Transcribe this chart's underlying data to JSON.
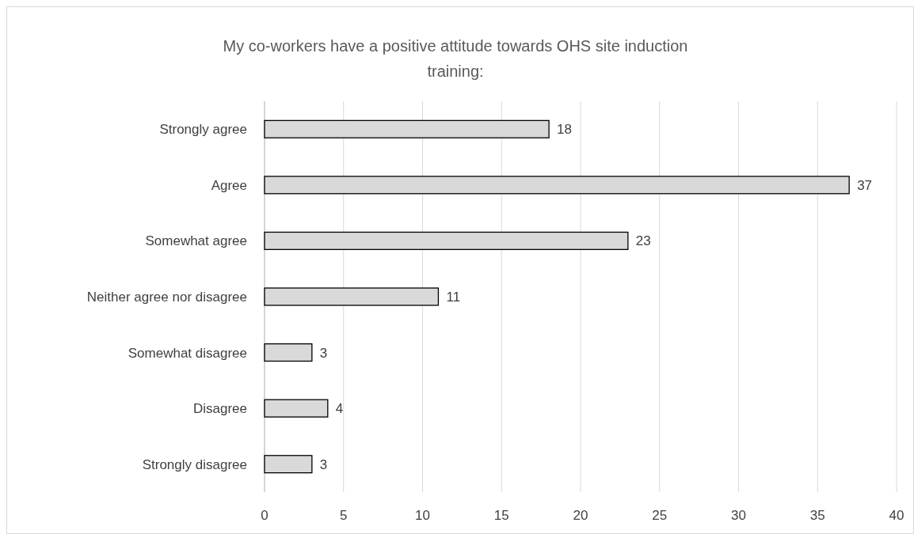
{
  "chart_data": {
    "type": "bar",
    "orientation": "horizontal",
    "title": "My co-workers have a positive attitude towards OHS site induction training:",
    "categories": [
      "Strongly agree",
      "Agree",
      "Somewhat agree",
      "Neither agree nor disagree",
      "Somewhat disagree",
      "Disagree",
      "Strongly disagree"
    ],
    "values": [
      18,
      37,
      23,
      11,
      3,
      4,
      3
    ],
    "color": "#d9d9d9",
    "xlim": [
      0,
      40
    ],
    "xticks": [
      0,
      5,
      10,
      15,
      20,
      25,
      30,
      35,
      40
    ],
    "grid": "x",
    "data_labels": true
  }
}
